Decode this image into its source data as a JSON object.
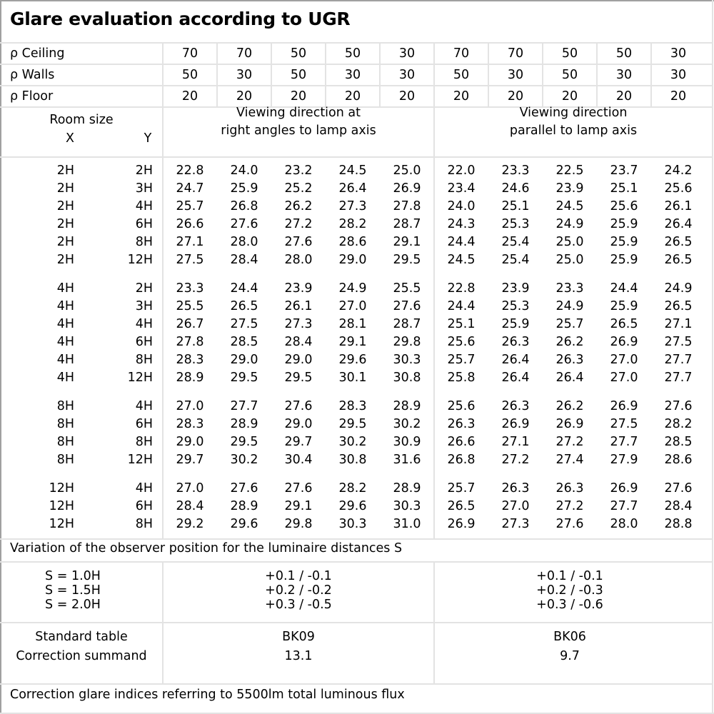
{
  "title": "Glare evaluation according to UGR",
  "reflectance": [
    {
      "label": "ρ Ceiling",
      "values": [
        "70",
        "70",
        "50",
        "50",
        "30",
        "70",
        "70",
        "50",
        "50",
        "30"
      ]
    },
    {
      "label": "ρ Walls",
      "values": [
        "50",
        "30",
        "50",
        "30",
        "30",
        "50",
        "30",
        "50",
        "30",
        "30"
      ]
    },
    {
      "label": "ρ Floor",
      "values": [
        "20",
        "20",
        "20",
        "20",
        "20",
        "20",
        "20",
        "20",
        "20",
        "20"
      ]
    }
  ],
  "room_size": {
    "label": "Room size",
    "x": "X",
    "y": "Y"
  },
  "directions": {
    "perpendicular": [
      "Viewing direction at",
      "right angles to lamp axis"
    ],
    "parallel": [
      "Viewing direction",
      "parallel to lamp axis"
    ]
  },
  "groups": [
    {
      "rows": [
        {
          "x": "2H",
          "y": "2H",
          "values": [
            "22.8",
            "24.0",
            "23.2",
            "24.5",
            "25.0",
            "22.0",
            "23.3",
            "22.5",
            "23.7",
            "24.2"
          ]
        },
        {
          "x": "2H",
          "y": "3H",
          "values": [
            "24.7",
            "25.9",
            "25.2",
            "26.4",
            "26.9",
            "23.4",
            "24.6",
            "23.9",
            "25.1",
            "25.6"
          ]
        },
        {
          "x": "2H",
          "y": "4H",
          "values": [
            "25.7",
            "26.8",
            "26.2",
            "27.3",
            "27.8",
            "24.0",
            "25.1",
            "24.5",
            "25.6",
            "26.1"
          ]
        },
        {
          "x": "2H",
          "y": "6H",
          "values": [
            "26.6",
            "27.6",
            "27.2",
            "28.2",
            "28.7",
            "24.3",
            "25.3",
            "24.9",
            "25.9",
            "26.4"
          ]
        },
        {
          "x": "2H",
          "y": "8H",
          "values": [
            "27.1",
            "28.0",
            "27.6",
            "28.6",
            "29.1",
            "24.4",
            "25.4",
            "25.0",
            "25.9",
            "26.5"
          ]
        },
        {
          "x": "2H",
          "y": "12H",
          "values": [
            "27.5",
            "28.4",
            "28.0",
            "29.0",
            "29.5",
            "24.5",
            "25.4",
            "25.0",
            "25.9",
            "26.5"
          ]
        }
      ]
    },
    {
      "rows": [
        {
          "x": "4H",
          "y": "2H",
          "values": [
            "23.3",
            "24.4",
            "23.9",
            "24.9",
            "25.5",
            "22.8",
            "23.9",
            "23.3",
            "24.4",
            "24.9"
          ]
        },
        {
          "x": "4H",
          "y": "3H",
          "values": [
            "25.5",
            "26.5",
            "26.1",
            "27.0",
            "27.6",
            "24.4",
            "25.3",
            "24.9",
            "25.9",
            "26.5"
          ]
        },
        {
          "x": "4H",
          "y": "4H",
          "values": [
            "26.7",
            "27.5",
            "27.3",
            "28.1",
            "28.7",
            "25.1",
            "25.9",
            "25.7",
            "26.5",
            "27.1"
          ]
        },
        {
          "x": "4H",
          "y": "6H",
          "values": [
            "27.8",
            "28.5",
            "28.4",
            "29.1",
            "29.8",
            "25.6",
            "26.3",
            "26.2",
            "26.9",
            "27.5"
          ]
        },
        {
          "x": "4H",
          "y": "8H",
          "values": [
            "28.3",
            "29.0",
            "29.0",
            "29.6",
            "30.3",
            "25.7",
            "26.4",
            "26.3",
            "27.0",
            "27.7"
          ]
        },
        {
          "x": "4H",
          "y": "12H",
          "values": [
            "28.9",
            "29.5",
            "29.5",
            "30.1",
            "30.8",
            "25.8",
            "26.4",
            "26.4",
            "27.0",
            "27.7"
          ]
        }
      ]
    },
    {
      "rows": [
        {
          "x": "8H",
          "y": "4H",
          "values": [
            "27.0",
            "27.7",
            "27.6",
            "28.3",
            "28.9",
            "25.6",
            "26.3",
            "26.2",
            "26.9",
            "27.6"
          ]
        },
        {
          "x": "8H",
          "y": "6H",
          "values": [
            "28.3",
            "28.9",
            "29.0",
            "29.5",
            "30.2",
            "26.3",
            "26.9",
            "26.9",
            "27.5",
            "28.2"
          ]
        },
        {
          "x": "8H",
          "y": "8H",
          "values": [
            "29.0",
            "29.5",
            "29.7",
            "30.2",
            "30.9",
            "26.6",
            "27.1",
            "27.2",
            "27.7",
            "28.5"
          ]
        },
        {
          "x": "8H",
          "y": "12H",
          "values": [
            "29.7",
            "30.2",
            "30.4",
            "30.8",
            "31.6",
            "26.8",
            "27.2",
            "27.4",
            "27.9",
            "28.6"
          ]
        }
      ]
    },
    {
      "rows": [
        {
          "x": "12H",
          "y": "4H",
          "values": [
            "27.0",
            "27.6",
            "27.6",
            "28.2",
            "28.9",
            "25.7",
            "26.3",
            "26.3",
            "26.9",
            "27.6"
          ]
        },
        {
          "x": "12H",
          "y": "6H",
          "values": [
            "28.4",
            "28.9",
            "29.1",
            "29.6",
            "30.3",
            "26.5",
            "27.0",
            "27.2",
            "27.7",
            "28.4"
          ]
        },
        {
          "x": "12H",
          "y": "8H",
          "values": [
            "29.2",
            "29.6",
            "29.8",
            "30.3",
            "31.0",
            "26.9",
            "27.3",
            "27.6",
            "28.0",
            "28.8"
          ]
        }
      ]
    }
  ],
  "variation_label": "Variation of the observer position for the luminaire distances S",
  "s_rows": [
    {
      "label": "S = 1.0H",
      "perpendicular": "+0.1 / -0.1",
      "parallel": "+0.1 / -0.1"
    },
    {
      "label": "S = 1.5H",
      "perpendicular": "+0.2 / -0.2",
      "parallel": "+0.2 / -0.3"
    },
    {
      "label": "S = 2.0H",
      "perpendicular": "+0.3 / -0.5",
      "parallel": "+0.3 / -0.6"
    }
  ],
  "standard_table": {
    "label": "Standard table",
    "perpendicular": "BK09",
    "parallel": "BK06"
  },
  "correction": {
    "label": "Correction summand",
    "perpendicular": "13.1",
    "parallel": "9.7"
  },
  "footer": "Correction glare indices referring to 5500lm total luminous flux",
  "colors": {
    "grid": "#e3e3e3",
    "outer_border": "#a0a0a0",
    "text": "#000000"
  }
}
